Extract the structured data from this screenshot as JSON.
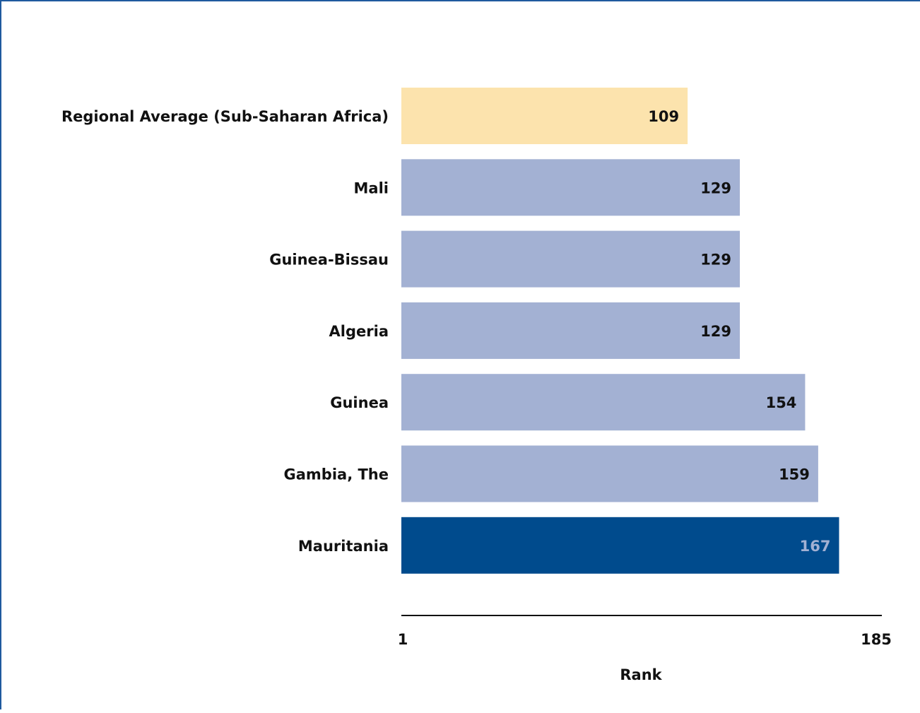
{
  "chart_data": {
    "type": "bar",
    "orientation": "horizontal",
    "categories": [
      "Regional Average (Sub-Saharan Africa)",
      "Mali",
      "Guinea-Bissau",
      "Algeria",
      "Guinea",
      "Gambia, The",
      "Mauritania"
    ],
    "values": [
      109,
      129,
      129,
      129,
      154,
      159,
      167
    ],
    "value_labels": [
      "109",
      "129",
      "129",
      "129",
      "154",
      "159",
      "167"
    ],
    "xlabel": "Rank",
    "xlim": [
      1,
      185
    ],
    "tick_labels": [
      "1",
      "185"
    ],
    "grid": false,
    "legend": "none",
    "colors": {
      "regional_average": "#fce3ad",
      "comparator": "#a3b1d3",
      "highlight": "#004b8d",
      "value_text_dark": "#111111",
      "value_text_light": "#a3b1d3"
    },
    "highlight_index": 6,
    "average_index": 0
  }
}
